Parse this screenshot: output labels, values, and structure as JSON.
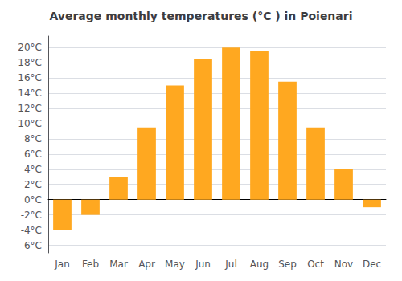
{
  "chart_data": {
    "type": "bar",
    "title": "Average monthly temperatures (°C ) in Poienari",
    "categories": [
      "Jan",
      "Feb",
      "Mar",
      "Apr",
      "May",
      "Jun",
      "Jul",
      "Aug",
      "Sep",
      "Oct",
      "Nov",
      "Dec"
    ],
    "values": [
      -4.0,
      -2.0,
      3.0,
      9.5,
      15.0,
      18.5,
      20.0,
      19.5,
      15.5,
      9.5,
      4.0,
      -1.0
    ],
    "color": "#FFA820",
    "ylim": [
      -7,
      21.5
    ],
    "yticks": [
      {
        "value": -6,
        "label": "-6°C"
      },
      {
        "value": -4,
        "label": "-4°C"
      },
      {
        "value": -2,
        "label": "-2°C"
      },
      {
        "value": 0,
        "label": "0°C"
      },
      {
        "value": 2,
        "label": "2°C"
      },
      {
        "value": 4,
        "label": "4°C"
      },
      {
        "value": 6,
        "label": "6°C"
      },
      {
        "value": 8,
        "label": "8°C"
      },
      {
        "value": 10,
        "label": "10°C"
      },
      {
        "value": 12,
        "label": "12°C"
      },
      {
        "value": 14,
        "label": "14°C"
      },
      {
        "value": 16,
        "label": "16°C"
      },
      {
        "value": 18,
        "label": "18°C"
      },
      {
        "value": 20,
        "label": "20°C"
      }
    ],
    "grid": true
  }
}
